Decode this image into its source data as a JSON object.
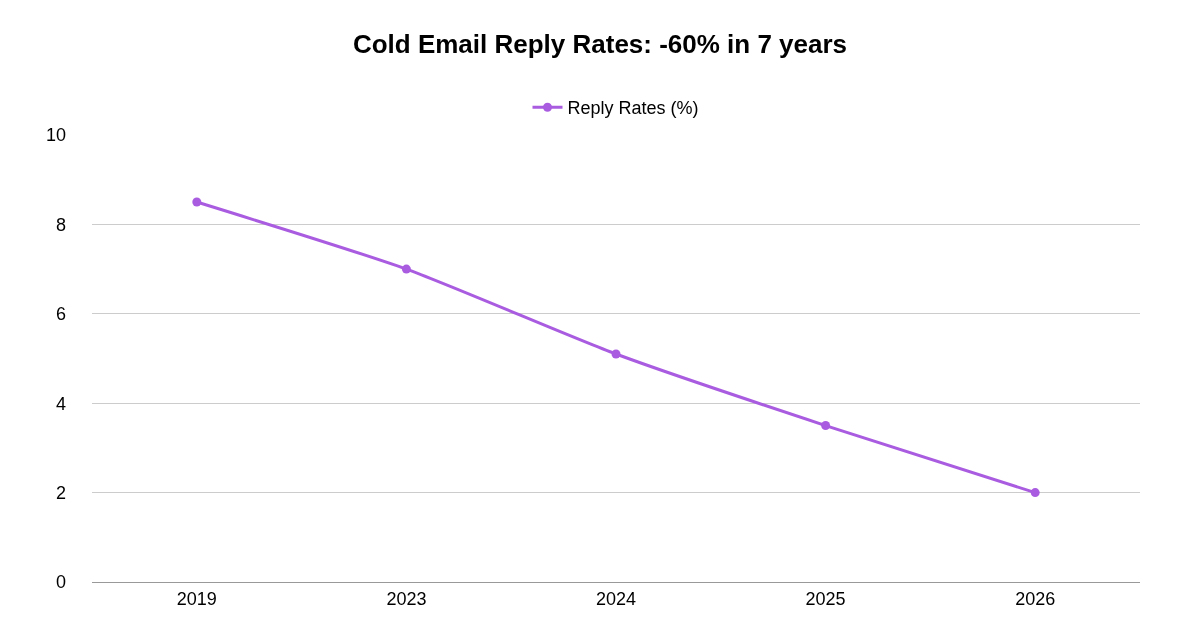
{
  "chart_data": {
    "type": "line",
    "title": "Cold Email Reply Rates: -60% in 7 years",
    "categories": [
      "2019",
      "2023",
      "2024",
      "2025",
      "2026"
    ],
    "series": [
      {
        "name": "Reply Rates (%)",
        "color": "#a95ce0",
        "values": [
          8.5,
          7.0,
          5.1,
          3.5,
          2.0
        ]
      }
    ],
    "ylim": [
      0,
      10
    ],
    "yticks": [
      0,
      2,
      4,
      6,
      8,
      10
    ],
    "grid": "y",
    "legend": "top",
    "marker": "circle",
    "line_style": "solid"
  }
}
